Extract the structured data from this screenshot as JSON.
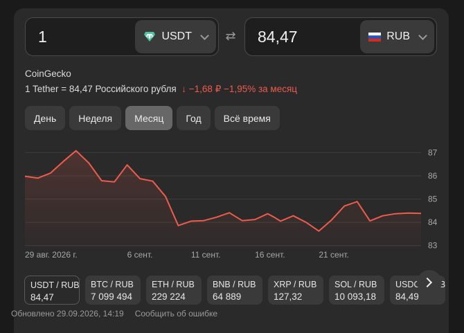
{
  "converter": {
    "from_amount": "1",
    "from_currency": "USDT",
    "to_amount": "84,47",
    "to_currency": "RUB"
  },
  "source": "CoinGecko",
  "rate": {
    "text": "1 Tether = 84,47 Российского рубля",
    "change_abs": "−1,68 ₽",
    "change_pct": "−1,95%",
    "period": "за месяц"
  },
  "periods": [
    "День",
    "Неделя",
    "Месяц",
    "Год",
    "Всё время"
  ],
  "active_period": "Месяц",
  "chart_data": {
    "type": "area",
    "x": [
      0,
      1,
      2,
      3,
      4,
      5,
      6,
      7,
      8,
      9,
      10,
      11,
      12,
      13,
      14,
      15,
      16,
      17,
      18,
      19,
      19.5,
      20,
      21,
      22,
      23,
      24,
      25,
      26,
      27,
      28,
      29,
      30,
      31
    ],
    "y": [
      85.98,
      85.9,
      86.12,
      86.62,
      87.08,
      86.55,
      85.79,
      85.74,
      86.47,
      85.88,
      85.77,
      85.11,
      83.86,
      84.05,
      84.07,
      84.22,
      84.41,
      84.07,
      84.12,
      84.37,
      84.22,
      84.05,
      84.28,
      84.0,
      83.62,
      84.1,
      84.7,
      84.89,
      84.06,
      84.28,
      84.37,
      84.4,
      84.38
    ],
    "x_tick_labels": [
      "29 авг. 2026 г.",
      "6 сент.",
      "11 сент.",
      "16 сент.",
      "21 сент."
    ],
    "y_tick_labels": [
      "87",
      "86",
      "85",
      "84",
      "83"
    ],
    "ylim": [
      82.9,
      87.4
    ],
    "grid": true,
    "line_color": "#ef5b4c"
  },
  "pairs": [
    {
      "name": "USDT / RUB",
      "value": "84,47"
    },
    {
      "name": "BTC / RUB",
      "value": "7 099 494"
    },
    {
      "name": "ETH / RUB",
      "value": "229 224"
    },
    {
      "name": "BNB / RUB",
      "value": "64 889"
    },
    {
      "name": "XRP / RUB",
      "value": "127,32"
    },
    {
      "name": "SOL / RUB",
      "value": "10 093,18"
    },
    {
      "name": "USDC / RUB",
      "value": "84,49"
    }
  ],
  "footer": {
    "updated": "Обновлено 29.09.2026, 14:19",
    "report": "Сообщить об ошибке"
  }
}
